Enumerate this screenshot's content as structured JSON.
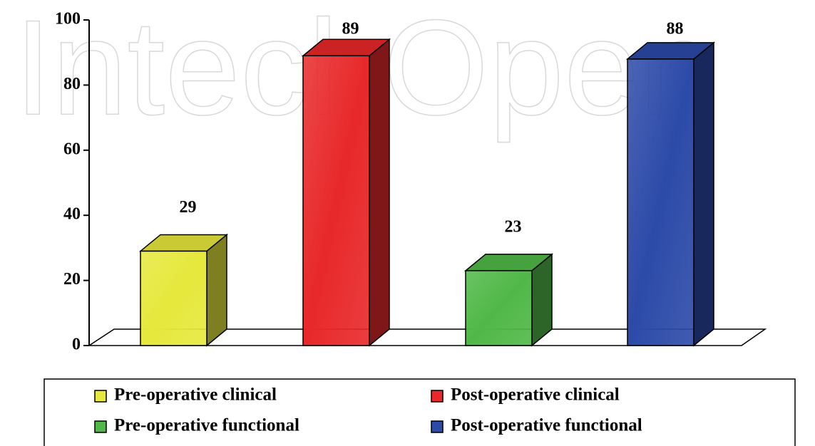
{
  "watermark": "IntechOpen",
  "chart_data": {
    "type": "bar3d",
    "series": [
      {
        "name": "Pre-operative clinical",
        "color": "#e6e83c",
        "values": [
          29
        ]
      },
      {
        "name": "Post-operative clinical",
        "color": "#e8282a",
        "values": [
          89
        ]
      },
      {
        "name": "Pre-operative functional",
        "color": "#50b848",
        "values": [
          23
        ]
      },
      {
        "name": "Post-operative functional",
        "color": "#2c4aa8",
        "values": [
          88
        ]
      }
    ],
    "ylim": [
      0,
      100
    ],
    "yticks": [
      0,
      20,
      40,
      60,
      80,
      100
    ]
  }
}
